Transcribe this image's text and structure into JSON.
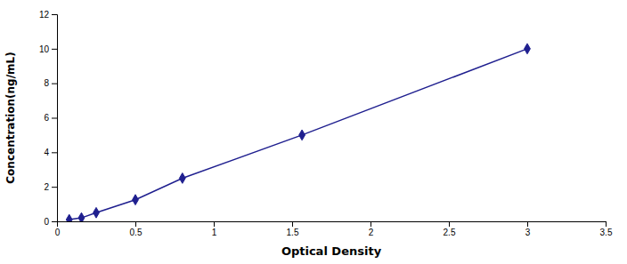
{
  "chart_data": {
    "type": "line",
    "xlabel": "Optical Density",
    "ylabel": "Concentration(ng/mL)",
    "x": [
      0.078,
      0.156,
      0.25,
      0.5,
      0.8,
      1.563,
      3.0
    ],
    "values": [
      0.1,
      0.2,
      0.5,
      1.25,
      2.5,
      5.0,
      10.0
    ],
    "color": "#1F1F8F",
    "marker": "diamond",
    "line_style": "solid",
    "xlim": [
      0,
      3.5
    ],
    "ylim": [
      0,
      12
    ],
    "xticks": [
      0,
      0.5,
      1,
      1.5,
      2,
      2.5,
      3,
      3.5
    ],
    "yticks": [
      0,
      2,
      4,
      6,
      8,
      10,
      12
    ],
    "grid": false
  }
}
